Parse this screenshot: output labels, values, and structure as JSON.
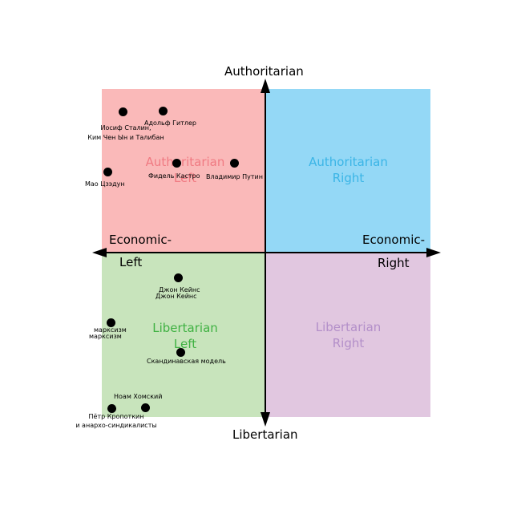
{
  "colors": {
    "authoritarian_left": "#fab9b9",
    "authoritarian_right": "#94d8f6",
    "libertarian_left": "#c8e4bc",
    "libertarian_right": "#e1c7e0",
    "al_text": "#f07a82",
    "ar_text": "#3bb5e6",
    "ll_text": "#3fb142",
    "lr_text": "#b38fc9"
  },
  "axes": {
    "top": "Authoritarian",
    "bottom": "Libertarian",
    "left_line1": "Economic-",
    "left_line2": "Left",
    "right_line1": "Economic-",
    "right_line2": "Right"
  },
  "quadrants": {
    "authoritarian_left": {
      "line1": "Authoritarian",
      "line2": "Left"
    },
    "authoritarian_right": {
      "line1": "Authoritarian",
      "line2": "Right"
    },
    "libertarian_left": {
      "line1": "Libertarian",
      "line2": "Left"
    },
    "libertarian_right": {
      "line1": "Libertarian",
      "line2": "Right"
    }
  },
  "points": {
    "stalin": {
      "line1": "Иосиф Сталин,",
      "line2": "Ким Чен Ын и Талибан"
    },
    "hitler": {
      "line1": "Адольф Гитлер"
    },
    "castro": {
      "line1": "Фидель Кастро"
    },
    "putin": {
      "line1": "Владимир Путин"
    },
    "mao": {
      "line1": "Мао Цзэдун"
    },
    "keynes": {
      "line1": "Джон Кейнс",
      "line2": "Джон Кейнс"
    },
    "marxism": {
      "line1": "марксизм",
      "line2": "марксизм"
    },
    "nordic": {
      "line1": "Скандинавская модель"
    },
    "chomsky": {
      "line1": "Ноам Хомский"
    },
    "kropotkin": {
      "line1": "Пётр Кропоткин",
      "line2": "и анархо-синдикалисты"
    }
  }
}
